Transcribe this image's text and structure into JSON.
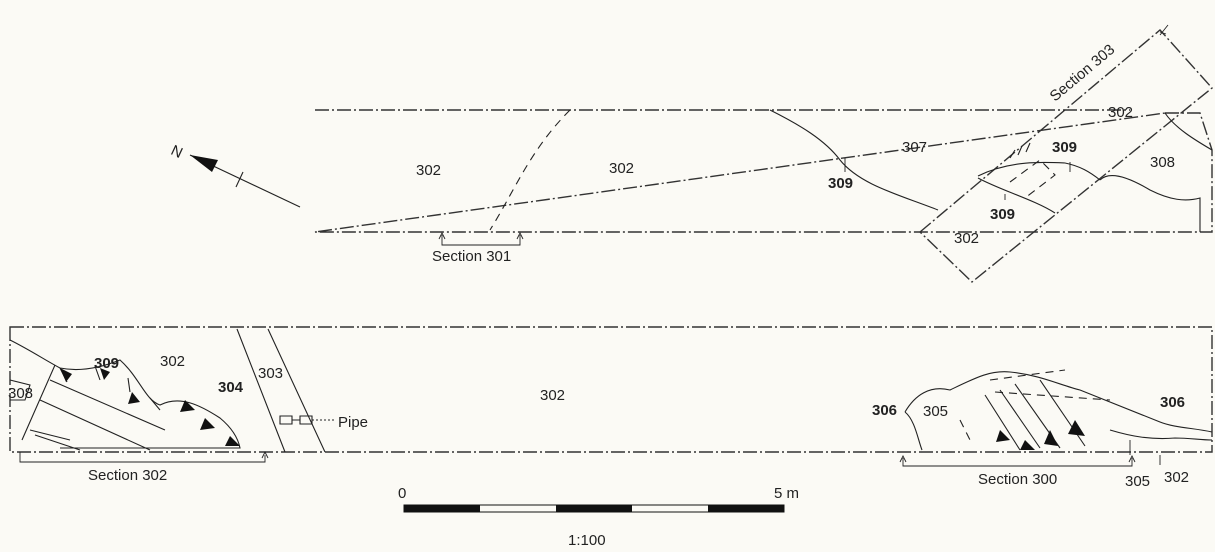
{
  "north_label": "N",
  "upper_trench": {
    "deposit_labels": [
      "302",
      "302",
      "307",
      "302",
      "308",
      "302"
    ],
    "cut_labels": [
      "309",
      "309",
      "309"
    ],
    "section_labels": [
      "Section 301",
      "Section 303"
    ]
  },
  "lower_trench": {
    "deposit_labels": [
      "302",
      "302",
      "305",
      "302"
    ],
    "context_labels": [
      "309",
      "304",
      "306",
      "306"
    ],
    "small_labels": [
      "308",
      "303",
      "305"
    ],
    "pipe_label": "Pipe",
    "section_labels": [
      "Section 302",
      "Section 300"
    ]
  },
  "scale_bar": {
    "start_label": "0",
    "end_label": "5 m",
    "ratio_label": "1:100",
    "segments": 5
  }
}
